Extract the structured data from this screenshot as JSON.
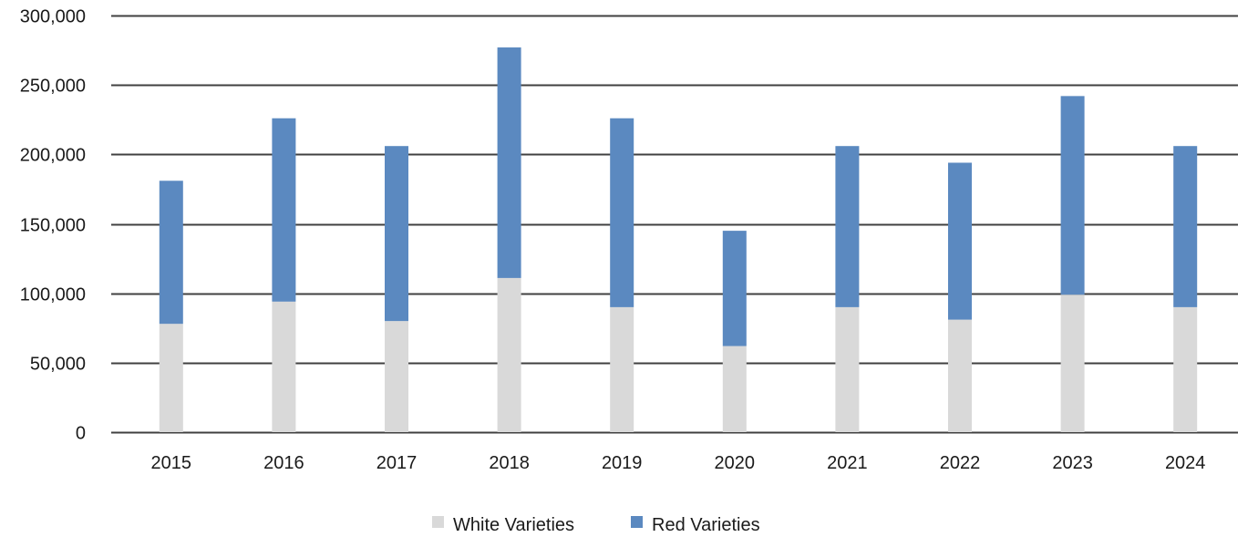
{
  "chart_data": {
    "type": "bar",
    "stacked": true,
    "title": "",
    "xlabel": "",
    "ylabel": "",
    "categories": [
      "2015",
      "2016",
      "2017",
      "2018",
      "2019",
      "2020",
      "2021",
      "2022",
      "2023",
      "2024"
    ],
    "series": [
      {
        "name": "White Varieties",
        "color": "#d9d9d9",
        "values": [
          78000,
          94000,
          80000,
          111000,
          90000,
          62000,
          90000,
          81000,
          99000,
          90000
        ]
      },
      {
        "name": "Red Varieties",
        "color": "#5b89c0",
        "values": [
          103000,
          132000,
          126000,
          166000,
          136000,
          83000,
          116000,
          113000,
          143000,
          116000
        ]
      }
    ],
    "ylim": [
      0,
      300000
    ],
    "yticks": [
      0,
      50000,
      100000,
      150000,
      200000,
      250000,
      300000
    ],
    "ytick_labels": [
      "0",
      "50,000",
      "100,000",
      "150,000",
      "200,000",
      "250,000",
      "300,000"
    ],
    "grid": true,
    "gridline_color": "#404040",
    "legend_position": "bottom"
  }
}
